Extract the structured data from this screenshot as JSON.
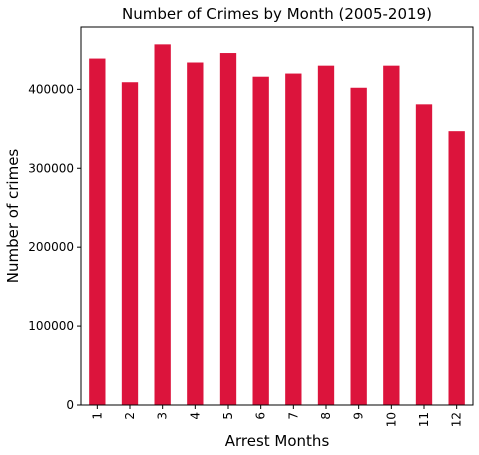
{
  "chart_data": {
    "type": "bar",
    "title": "Number of Crimes by Month (2005-2019)",
    "xlabel": "Arrest Months",
    "ylabel": "Number of crimes",
    "categories": [
      "1",
      "2",
      "3",
      "4",
      "5",
      "6",
      "7",
      "8",
      "9",
      "10",
      "11",
      "12"
    ],
    "values": [
      439000,
      409000,
      457000,
      434000,
      446000,
      416000,
      420000,
      430000,
      402000,
      430000,
      381000,
      347000
    ],
    "ylim": [
      0,
      479000
    ],
    "yticks": [
      0,
      100000,
      200000,
      300000,
      400000
    ],
    "ytick_labels": [
      "0",
      "100000",
      "200000",
      "300000",
      "400000"
    ],
    "bar_color": "#dc143c",
    "grid": false,
    "legend": false
  }
}
